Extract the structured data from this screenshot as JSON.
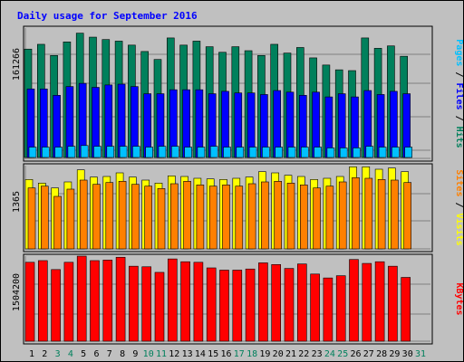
{
  "chart_data": {
    "type": "bar",
    "title": "Daily usage for September 2016",
    "categories": [
      "1",
      "2",
      "3",
      "4",
      "5",
      "6",
      "7",
      "8",
      "9",
      "10",
      "11",
      "12",
      "13",
      "14",
      "15",
      "16",
      "17",
      "18",
      "19",
      "20",
      "21",
      "22",
      "23",
      "24",
      "25",
      "26",
      "27",
      "28",
      "29",
      "30",
      "31"
    ],
    "weekend_days": [
      "3",
      "4",
      "10",
      "11",
      "17",
      "18",
      "24",
      "25",
      "31"
    ],
    "panels": [
      {
        "id": "hits-files-pages",
        "max_label": "161266",
        "ylim": [
          0,
          161266
        ],
        "right_labels": [
          "Pages",
          "Files",
          "Hits"
        ],
        "series": [
          {
            "name": "Hits",
            "color": "#00805c",
            "values": [
              136000,
              142000,
              128000,
              145000,
              156000,
              151000,
              148000,
              146000,
              141000,
              133000,
              123000,
              150000,
              141000,
              146000,
              139000,
              132000,
              139000,
              134000,
              128000,
              142000,
              131000,
              138000,
              125000,
              116000,
              110000,
              109000,
              150000,
              137000,
              140000,
              127000,
              null
            ]
          },
          {
            "name": "Files",
            "color": "#0000ff",
            "values": [
              86000,
              86000,
              78000,
              89000,
              93000,
              88000,
              91000,
              92000,
              89000,
              80000,
              80000,
              85000,
              85000,
              85000,
              80000,
              83000,
              81000,
              81000,
              79000,
              84000,
              82000,
              78000,
              82000,
              76000,
              80000,
              76000,
              84000,
              79000,
              83000,
              80000,
              null
            ]
          },
          {
            "name": "Pages",
            "color": "#00c0ff",
            "values": [
              13000,
              13000,
              13000,
              14000,
              15000,
              14000,
              14000,
              14000,
              14000,
              13000,
              14000,
              14000,
              13000,
              13000,
              14000,
              13000,
              13000,
              13000,
              13000,
              13000,
              13000,
              13000,
              13000,
              12000,
              12000,
              12000,
              14000,
              13000,
              13000,
              13000,
              null
            ]
          }
        ]
      },
      {
        "id": "visits-sites",
        "max_label": "1365",
        "ylim": [
          0,
          1365
        ],
        "right_labels": [
          "Sites",
          "Visits"
        ],
        "series": [
          {
            "name": "Visits",
            "color": "#ffff00",
            "values": [
              1150,
              1090,
              1010,
              1110,
              1310,
              1190,
              1200,
              1260,
              1190,
              1140,
              1090,
              1210,
              1200,
              1170,
              1160,
              1150,
              1170,
              1190,
              1280,
              1260,
              1220,
              1200,
              1150,
              1170,
              1200,
              1360,
              1360,
              1320,
              1340,
              1280,
              null
            ]
          },
          {
            "name": "Sites",
            "color": "#ff8000",
            "values": [
              1010,
              1040,
              870,
              990,
              1140,
              1070,
              1100,
              1120,
              1070,
              1040,
              1000,
              1080,
              1120,
              1060,
              1040,
              1060,
              1040,
              1080,
              1110,
              1120,
              1090,
              1060,
              1010,
              1040,
              1110,
              1180,
              1170,
              1150,
              1140,
              1100,
              null
            ]
          }
        ]
      },
      {
        "id": "kbytes",
        "max_label": "1504200",
        "ylim": [
          0,
          1504200
        ],
        "right_labels": [
          "KBytes"
        ],
        "series": [
          {
            "name": "KBytes",
            "color": "#ff0000",
            "values": [
              1410000,
              1440000,
              1280000,
              1410000,
              1520000,
              1440000,
              1450000,
              1500000,
              1340000,
              1330000,
              1230000,
              1470000,
              1420000,
              1410000,
              1310000,
              1270000,
              1270000,
              1290000,
              1400000,
              1370000,
              1300000,
              1380000,
              1200000,
              1130000,
              1170000,
              1460000,
              1390000,
              1420000,
              1340000,
              1140000,
              null
            ]
          }
        ]
      }
    ]
  }
}
